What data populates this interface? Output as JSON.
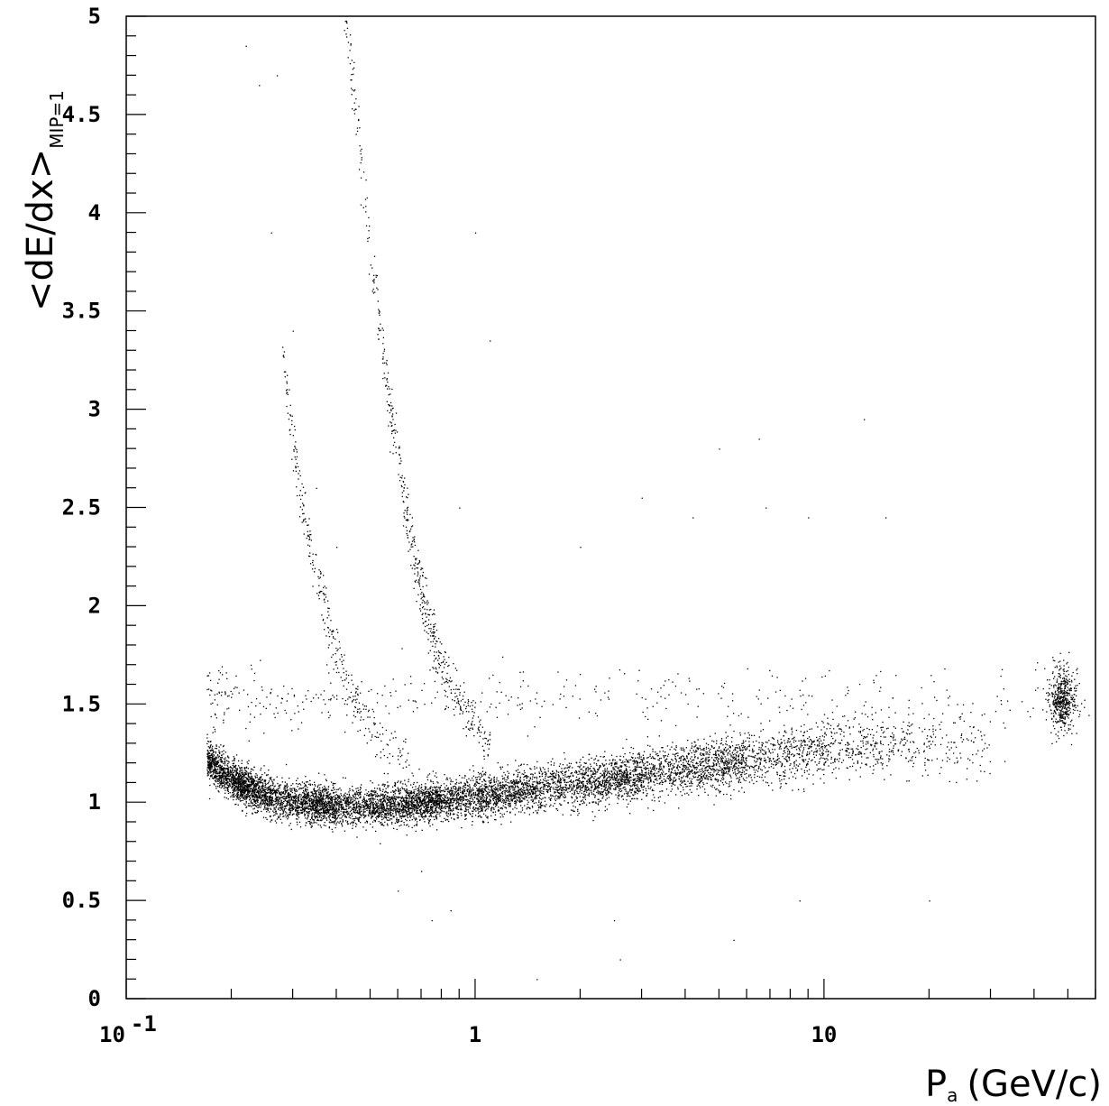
{
  "chart_data": {
    "type": "scatter",
    "title": "",
    "xscale": "log",
    "xlim": [
      0.1,
      60
    ],
    "ylim": [
      0,
      5
    ],
    "grid": false,
    "legend": "none",
    "marker_color": "#000000",
    "background": "#ffffff",
    "x_ticks": [
      {
        "value": 0.1,
        "label": "10",
        "exp": "-1"
      },
      {
        "value": 1,
        "label": "1",
        "exp": ""
      },
      {
        "value": 10,
        "label": "10",
        "exp": ""
      }
    ],
    "y_ticks": [
      {
        "value": 0,
        "label": "0"
      },
      {
        "value": 0.5,
        "label": "0.5"
      },
      {
        "value": 1,
        "label": "1"
      },
      {
        "value": 1.5,
        "label": "1.5"
      },
      {
        "value": 2,
        "label": "2"
      },
      {
        "value": 2.5,
        "label": "2.5"
      },
      {
        "value": 3,
        "label": "3"
      },
      {
        "value": 3.5,
        "label": "3.5"
      },
      {
        "value": 4,
        "label": "4"
      },
      {
        "value": 4.5,
        "label": "4.5"
      },
      {
        "value": 5,
        "label": "5"
      }
    ],
    "xlabel": {
      "main": "P",
      "sub": "a",
      "rest": "(GeV/c)"
    },
    "ylabel": {
      "main": "<dE/dx>",
      "sub": "MIP=1"
    },
    "series": [
      {
        "component": "main-band",
        "x": [
          0.17,
          0.18,
          0.2,
          0.22,
          0.25,
          0.3,
          0.35,
          0.4,
          0.5,
          0.6,
          0.7,
          0.8,
          1,
          1.2,
          1.5,
          2,
          2.5,
          3,
          4,
          5,
          6,
          8,
          10,
          13,
          16,
          20,
          25,
          30
        ],
        "y": [
          1.23,
          1.18,
          1.12,
          1.08,
          1.04,
          1.01,
          0.99,
          0.98,
          0.98,
          0.99,
          1.0,
          1.01,
          1.03,
          1.05,
          1.07,
          1.1,
          1.12,
          1.14,
          1.17,
          1.2,
          1.22,
          1.25,
          1.27,
          1.28,
          1.3,
          1.31,
          1.3,
          1.28
        ],
        "spread": [
          0.05,
          0.05,
          0.05,
          0.05,
          0.05,
          0.05,
          0.05,
          0.05,
          0.05,
          0.05,
          0.05,
          0.05,
          0.055,
          0.055,
          0.055,
          0.06,
          0.06,
          0.06,
          0.065,
          0.065,
          0.07,
          0.07,
          0.07,
          0.075,
          0.08,
          0.08,
          0.085,
          0.09
        ],
        "density": [
          0.4,
          0.6,
          0.9,
          1.0,
          1.0,
          1.0,
          1.0,
          1.0,
          1.0,
          1.0,
          1.0,
          1.0,
          1.0,
          1.0,
          1.0,
          0.95,
          0.9,
          0.9,
          0.85,
          0.75,
          0.65,
          0.5,
          0.4,
          0.3,
          0.2,
          0.15,
          0.1,
          0.06
        ]
      },
      {
        "component": "upper-band",
        "x": [
          0.17,
          0.2,
          0.3,
          0.5,
          1,
          2,
          5,
          10,
          20,
          35,
          55
        ],
        "y": [
          1.5,
          1.52,
          1.53,
          1.54,
          1.55,
          1.55,
          1.54,
          1.52,
          1.5,
          1.5,
          1.52
        ],
        "spread": [
          0.09,
          0.09,
          0.08,
          0.08,
          0.08,
          0.08,
          0.08,
          0.09,
          0.09,
          0.1,
          0.1
        ],
        "density": [
          0.25,
          0.3,
          0.3,
          0.3,
          0.3,
          0.3,
          0.3,
          0.25,
          0.2,
          0.15,
          0.12
        ]
      },
      {
        "component": "cluster",
        "x": [
          48
        ],
        "y": [
          1.52
        ],
        "spread": [
          0.08
        ],
        "density": [
          1.0
        ]
      },
      {
        "component": "proton-band",
        "x": [
          0.42,
          0.45,
          0.5,
          0.55,
          0.6,
          0.65,
          0.7,
          0.75,
          0.8,
          0.9,
          1.0,
          1.1
        ],
        "y": [
          5.0,
          4.6,
          3.8,
          3.2,
          2.75,
          2.35,
          2.05,
          1.85,
          1.7,
          1.5,
          1.38,
          1.3
        ],
        "spread": [
          0.08,
          0.08,
          0.08,
          0.08,
          0.08,
          0.07,
          0.07,
          0.07,
          0.06,
          0.06,
          0.06,
          0.06
        ],
        "density": [
          0.15,
          0.2,
          0.25,
          0.3,
          0.35,
          0.35,
          0.35,
          0.35,
          0.35,
          0.3,
          0.25,
          0.2
        ]
      },
      {
        "component": "kaon-band",
        "x": [
          0.28,
          0.3,
          0.32,
          0.35,
          0.38,
          0.42,
          0.47,
          0.55,
          0.65
        ],
        "y": [
          3.3,
          2.8,
          2.5,
          2.2,
          1.9,
          1.65,
          1.45,
          1.3,
          1.22
        ],
        "spread": [
          0.07,
          0.07,
          0.07,
          0.07,
          0.07,
          0.06,
          0.06,
          0.06,
          0.06
        ],
        "density": [
          0.15,
          0.2,
          0.25,
          0.25,
          0.25,
          0.25,
          0.25,
          0.2,
          0.15
        ]
      },
      {
        "component": "isolated-points",
        "x": [
          0.22,
          0.24,
          0.26,
          0.27,
          0.3,
          0.35,
          0.4,
          0.9,
          1.0,
          1.1,
          2.0,
          2.6,
          3.0,
          4.0,
          4.2,
          5.0,
          6.5,
          6.8,
          9.0,
          13.0,
          15.0,
          20.0,
          0.6,
          0.7,
          0.75,
          0.85,
          1.5,
          2.5,
          5.5,
          8.5
        ],
        "y": [
          4.85,
          4.65,
          3.9,
          4.7,
          3.4,
          2.6,
          2.3,
          2.5,
          3.9,
          3.35,
          2.3,
          0.2,
          2.55,
          1.55,
          2.45,
          2.8,
          2.85,
          2.5,
          2.45,
          2.95,
          2.45,
          0.5,
          0.55,
          0.65,
          0.4,
          0.45,
          0.1,
          0.4,
          0.3,
          0.5
        ],
        "spread": [
          0
        ],
        "density": [
          1
        ]
      }
    ]
  }
}
